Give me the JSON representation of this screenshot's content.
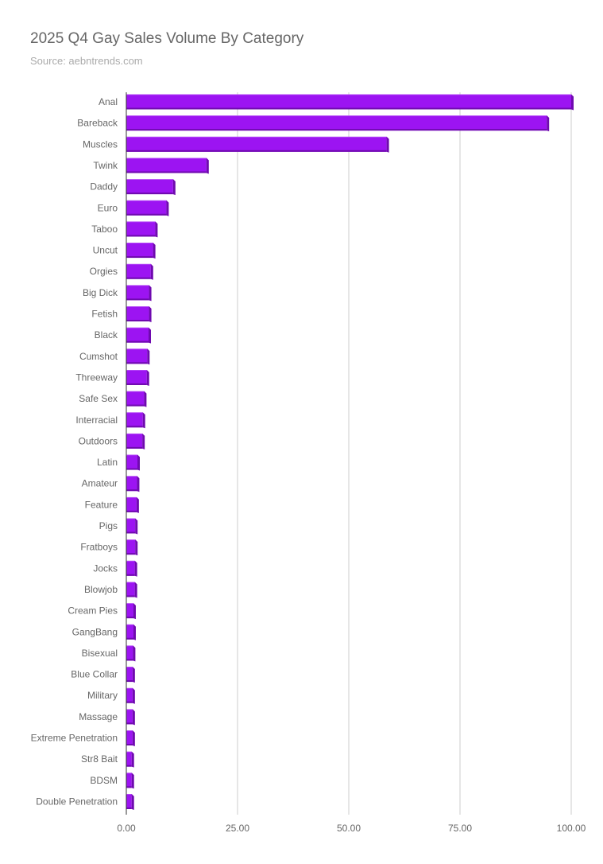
{
  "title": "2025 Q4 Gay Sales Volume By Category",
  "subtitle": "Source: aebntrends.com",
  "colors": {
    "bar_front": "#9c14f2",
    "bar_top": "#b54af7",
    "bar_side": "#6f0aaf",
    "grid": "#cccccc",
    "axis": "#333333",
    "text": "#666666"
  },
  "chart_data": {
    "type": "bar",
    "orientation": "horizontal",
    "title": "2025 Q4 Gay Sales Volume By Category",
    "subtitle": "Source: aebntrends.com",
    "xlabel": "",
    "ylabel": "",
    "xlim": [
      0,
      100
    ],
    "ticks": [
      "0.00",
      "25.00",
      "50.00",
      "75.00",
      "100.00"
    ],
    "tick_values": [
      0,
      25,
      50,
      75,
      100
    ],
    "grid": true,
    "categories": [
      "Anal",
      "Bareback",
      "Muscles",
      "Twink",
      "Daddy",
      "Euro",
      "Taboo",
      "Uncut",
      "Orgies",
      "Big Dick",
      "Fetish",
      "Black",
      "Cumshot",
      "Threeway",
      "Safe Sex",
      "Interracial",
      "Outdoors",
      "Latin",
      "Amateur",
      "Feature",
      "Pigs",
      "Fratboys",
      "Jocks",
      "Blowjob",
      "Cream Pies",
      "GangBang",
      "Bisexual",
      "Blue Collar",
      "Military",
      "Massage",
      "Extreme Penetration",
      "Str8 Bait",
      "BDSM",
      "Double Penetration"
    ],
    "values": [
      100,
      94.5,
      58.5,
      18,
      10.5,
      9,
      6.5,
      6,
      5.5,
      5.1,
      5.1,
      5,
      4.7,
      4.6,
      4,
      3.7,
      3.6,
      2.5,
      2.4,
      2.3,
      2,
      2,
      1.9,
      1.9,
      1.6,
      1.6,
      1.5,
      1.4,
      1.4,
      1.4,
      1.4,
      1.2,
      1.2,
      1.2
    ]
  }
}
